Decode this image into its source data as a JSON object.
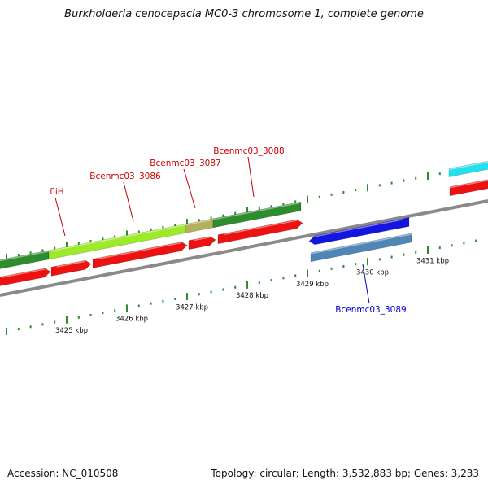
{
  "title": "Burkholderia cenocepacia MC0-3 chromosome 1, complete genome",
  "footer": {
    "accession": "Accession: NC_010508",
    "topology": "Topology: circular; Length: 3,532,883 bp; Genes: 3,233"
  },
  "colors": {
    "forward_gene": "#2e8b2e",
    "forward_gene_selected": "#9dea2a",
    "forward_gene_partial": "#b5b05a",
    "forward_cds": "#ee1111",
    "reverse_gene": "#1515e0",
    "reverse_cds": "#4f86b8",
    "top_right_feature": "#22e0ee",
    "axis": "#8a8a8a",
    "tick": "#2e8b2e",
    "label_forward": "#cc0000",
    "label_reverse": "#0000cc"
  },
  "kbp_ticks": [
    {
      "kbp": 3425,
      "label": "3425 kbp"
    },
    {
      "kbp": 3426,
      "label": "3426 kbp"
    },
    {
      "kbp": 3427,
      "label": "3427 kbp"
    },
    {
      "kbp": 3428,
      "label": "3428 kbp"
    },
    {
      "kbp": 3429,
      "label": "3429 kbp"
    },
    {
      "kbp": 3430,
      "label": "3430 kbp"
    },
    {
      "kbp": 3431,
      "label": "3431 kbp"
    }
  ],
  "gene_labels": [
    {
      "id": "fliH",
      "text": "fliH",
      "strand": "forward"
    },
    {
      "id": "Bcenmc03_3086",
      "text": "Bcenmc03_3086",
      "strand": "forward"
    },
    {
      "id": "Bcenmc03_3087",
      "text": "Bcenmc03_3087",
      "strand": "forward"
    },
    {
      "id": "Bcenmc03_3088",
      "text": "Bcenmc03_3088",
      "strand": "forward"
    },
    {
      "id": "Bcenmc03_3089",
      "text": "Bcenmc03_3089",
      "strand": "reverse"
    }
  ]
}
